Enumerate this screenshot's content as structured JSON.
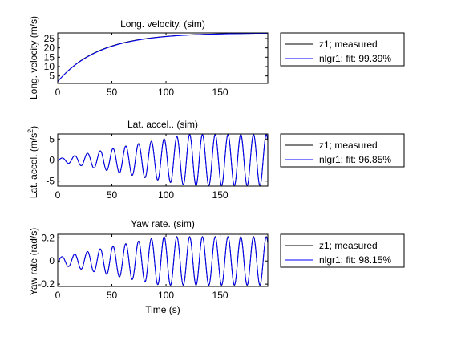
{
  "chart_data": [
    {
      "type": "line",
      "title": "Long. velocity. (sim)",
      "xlabel": "",
      "ylabel": "Long. velocity (m/s)",
      "xlim": [
        0,
        194
      ],
      "ylim": [
        1,
        28
      ],
      "xticks": [
        0,
        50,
        100,
        150
      ],
      "yticks": [
        5,
        10,
        15,
        20,
        25
      ],
      "ytick_labels": [
        "5",
        "10",
        "15",
        "20",
        "25"
      ],
      "grid": false,
      "legend_position": "outside-right",
      "signal": {
        "kind": "exponential-approach",
        "start": 2.0,
        "final": 28.0,
        "tau": 38.0
      },
      "series": [
        {
          "name": "z1; measured",
          "color": "#000000"
        },
        {
          "name": "nlgr1; fit: 99.39%",
          "color": "#0000ff"
        }
      ]
    },
    {
      "type": "line",
      "title": "Lat. accel.. (sim)",
      "xlabel": "",
      "ylabel": "Lat. accel. (m/s²)",
      "xlim": [
        0,
        194
      ],
      "ylim": [
        -6.2,
        6.2
      ],
      "xticks": [
        0,
        50,
        100,
        150
      ],
      "yticks": [
        -5,
        0,
        5
      ],
      "ytick_labels": [
        "-5",
        "0",
        "5"
      ],
      "grid": false,
      "legend_position": "outside-right",
      "signal": {
        "kind": "growing-oscillation",
        "period": 11.8,
        "amp_min": 0.3,
        "amp_max": 6.1,
        "ramp_end": 120
      },
      "series": [
        {
          "name": "z1; measured",
          "color": "#000000"
        },
        {
          "name": "nlgr1; fit: 96.85%",
          "color": "#0000ff"
        }
      ]
    },
    {
      "type": "line",
      "title": "Yaw rate. (sim)",
      "xlabel": "Time (s)",
      "ylabel": "Yaw rate (rad/s)",
      "xlim": [
        0,
        194
      ],
      "ylim": [
        -0.22,
        0.23
      ],
      "xticks": [
        0,
        50,
        100,
        150
      ],
      "yticks": [
        -0.2,
        0,
        0.2
      ],
      "ytick_labels": [
        "-0.2",
        "0",
        "0.2"
      ],
      "grid": false,
      "legend_position": "outside-right",
      "signal": {
        "kind": "growing-oscillation",
        "period": 11.8,
        "amp_min": 0.03,
        "amp_max": 0.21,
        "ramp_end": 95
      },
      "series": [
        {
          "name": "z1; measured",
          "color": "#000000"
        },
        {
          "name": "nlgr1; fit: 98.15%",
          "color": "#0000ff"
        }
      ]
    }
  ]
}
